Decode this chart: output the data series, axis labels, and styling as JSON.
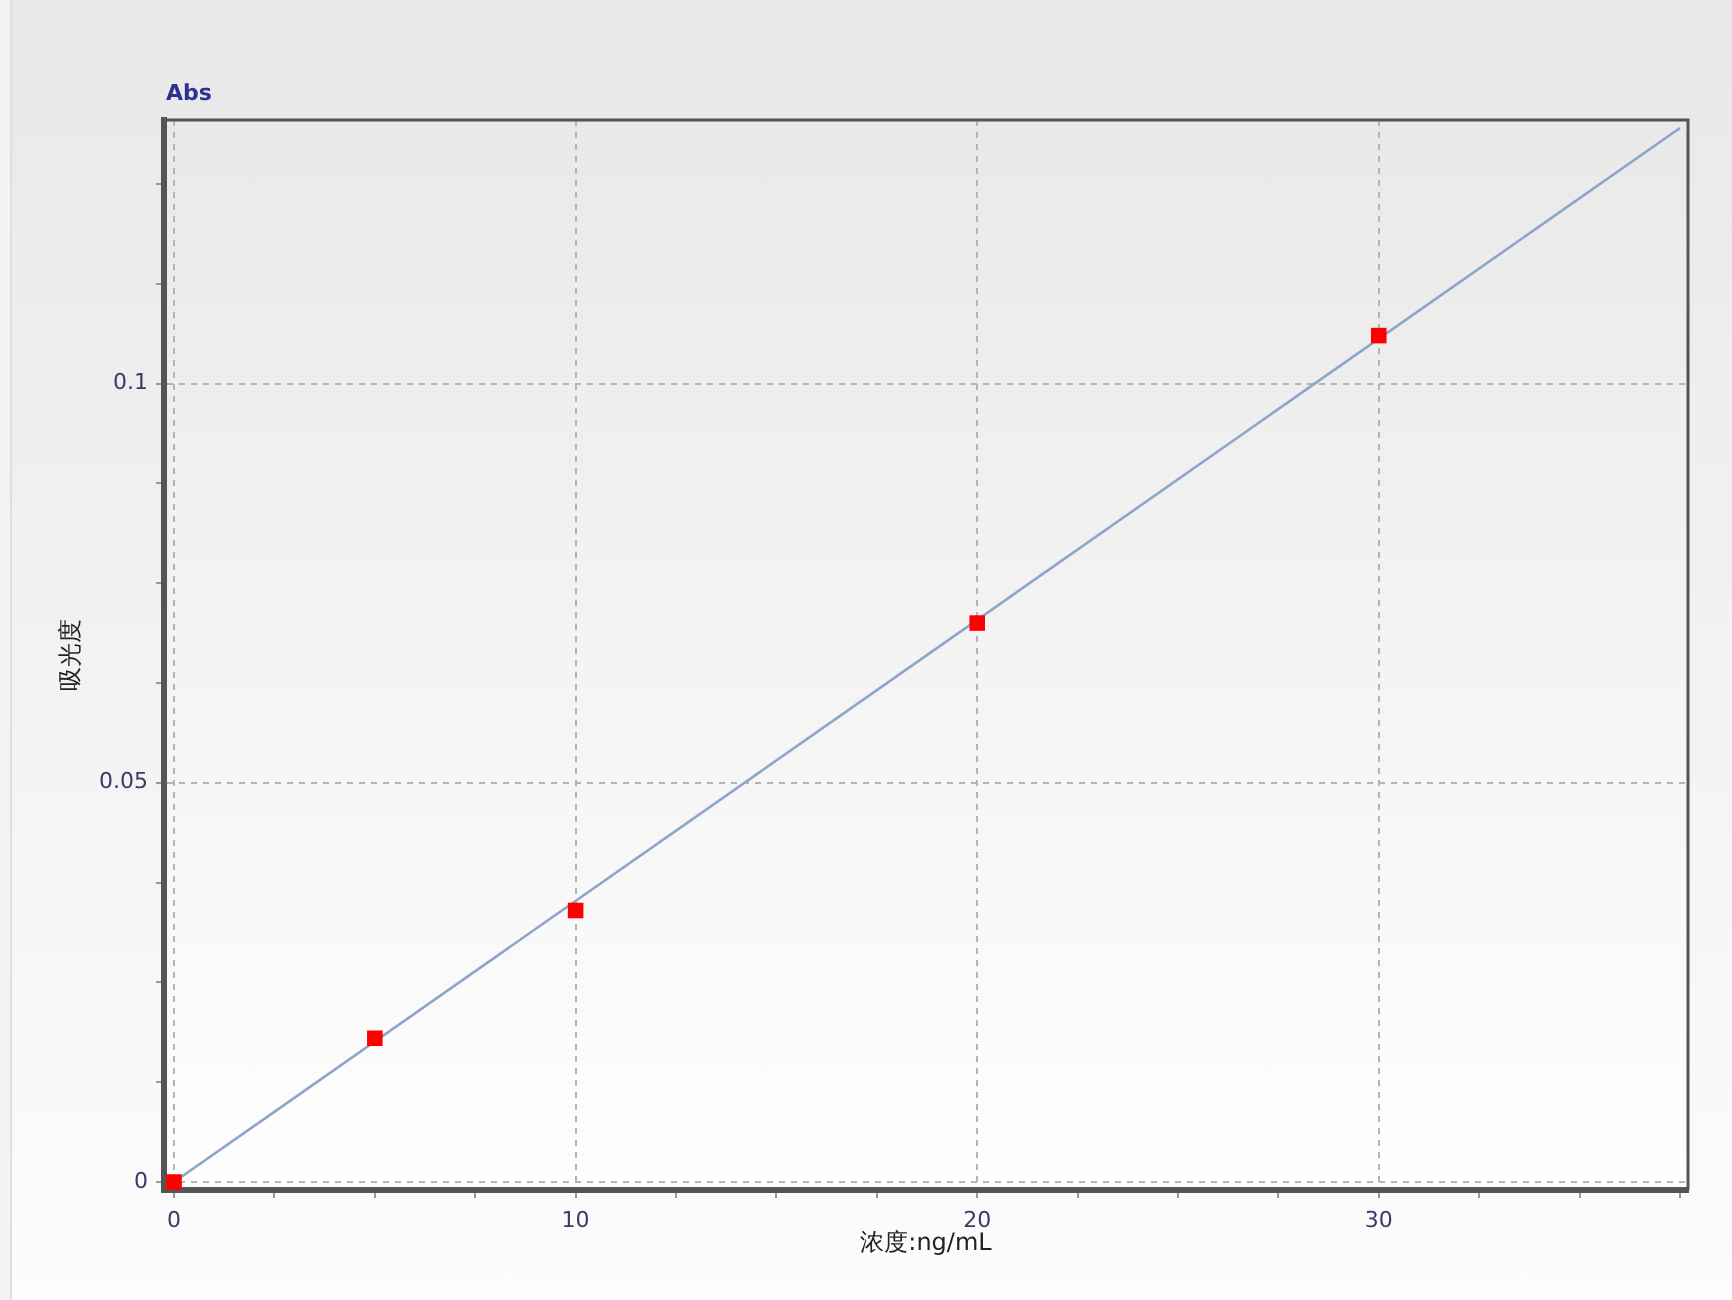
{
  "chart_data": {
    "type": "scatter",
    "title": "Abs",
    "xlabel": "浓度:ng/mL",
    "ylabel": "吸光度",
    "series": [
      {
        "type": "scatter",
        "color": "#ff0000",
        "marker": "square",
        "x": [
          0,
          5,
          10,
          20,
          30
        ],
        "values": [
          0,
          0.018,
          0.034,
          0.07,
          0.106
        ]
      },
      {
        "type": "line",
        "color": "#8ea4c8",
        "marker": "none",
        "line_style": "solid",
        "x": [
          0,
          37.5
        ],
        "values": [
          0,
          0.132
        ]
      }
    ],
    "xlim": [
      -0.25,
      37.7
    ],
    "ylim": [
      -0.001,
      0.133
    ],
    "xticks": [
      0,
      {
        "value": 2.5,
        "label": null
      },
      {
        "value": 5,
        "label": null
      },
      {
        "value": 7.5,
        "label": null
      },
      10,
      {
        "value": 12.5,
        "label": null
      },
      {
        "value": 15,
        "label": null
      },
      {
        "value": 17.5,
        "label": null
      },
      20,
      {
        "value": 22.5,
        "label": null
      },
      {
        "value": 25,
        "label": null
      },
      {
        "value": 27.5,
        "label": null
      },
      30,
      {
        "value": 32.5,
        "label": null
      },
      {
        "value": 35,
        "label": null
      },
      {
        "value": 37.5,
        "label": null
      }
    ],
    "yticks": [
      0,
      {
        "value": 0.0125,
        "label": null
      },
      {
        "value": 0.025,
        "label": null
      },
      {
        "value": 0.0375,
        "label": null
      },
      0.05,
      {
        "value": 0.0625,
        "label": null
      },
      {
        "value": 0.075,
        "label": null
      },
      {
        "value": 0.0875,
        "label": null
      },
      0.1,
      {
        "value": 0.1125,
        "label": null
      },
      {
        "value": 0.125,
        "label": null
      }
    ],
    "grid": true
  }
}
